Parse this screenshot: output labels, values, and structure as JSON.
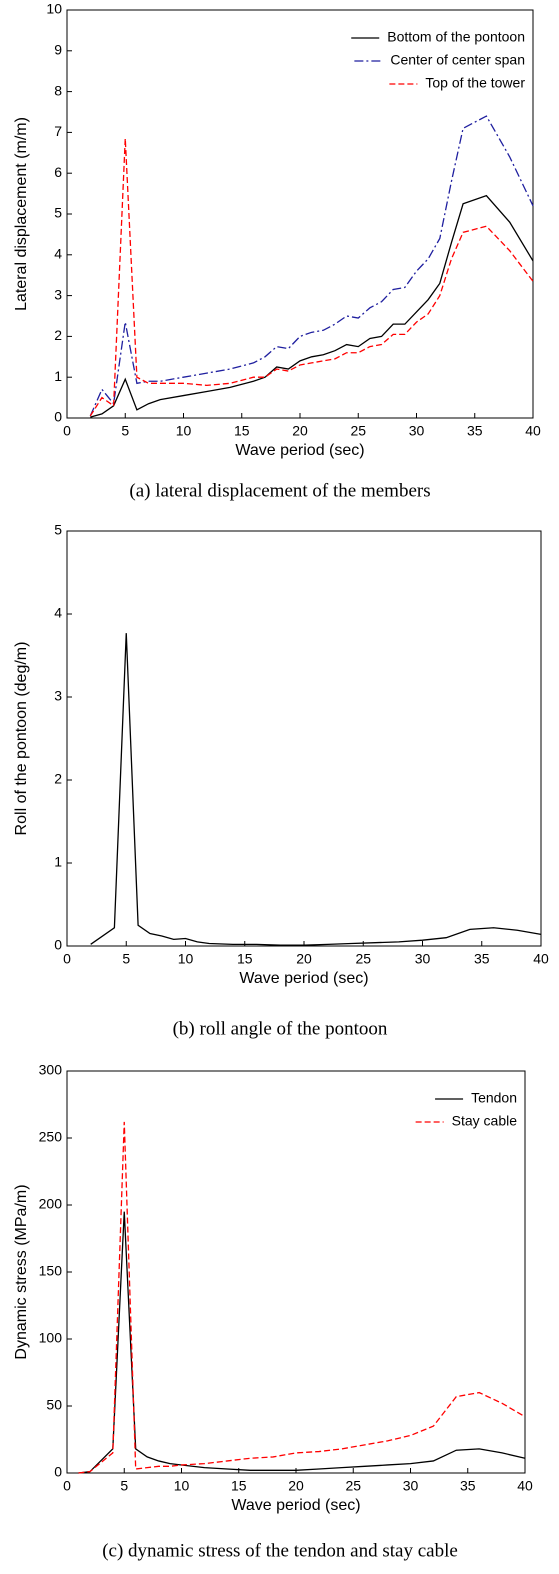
{
  "chart_data": [
    {
      "type": "line",
      "caption": "(a) lateral displacement of the members",
      "x_label": "Wave period (sec)",
      "y_label": "Lateral displacement (m/m)",
      "x": [
        2,
        3,
        4,
        5,
        6,
        7,
        8,
        10,
        12,
        14,
        16,
        17,
        18,
        19,
        20,
        21,
        22,
        23,
        24,
        25,
        26,
        27,
        28,
        29,
        30,
        31,
        32,
        33,
        34,
        36,
        38,
        40
      ],
      "series": [
        {
          "name": "Bottom of the pontoon",
          "color": "#000000",
          "dash": "solid",
          "values": [
            0.02,
            0.1,
            0.3,
            0.95,
            0.2,
            0.35,
            0.45,
            0.55,
            0.65,
            0.75,
            0.9,
            1.0,
            1.25,
            1.2,
            1.4,
            1.5,
            1.55,
            1.65,
            1.8,
            1.75,
            1.95,
            2.0,
            2.3,
            2.3,
            2.6,
            2.9,
            3.3,
            4.3,
            5.25,
            5.45,
            4.8,
            3.85
          ]
        },
        {
          "name": "Center of center span",
          "color": "#1f1f9f",
          "dash": "dashdot",
          "values": [
            0.05,
            0.7,
            0.35,
            2.35,
            0.85,
            0.9,
            0.9,
            1.0,
            1.1,
            1.2,
            1.35,
            1.5,
            1.75,
            1.7,
            2.0,
            2.1,
            2.15,
            2.3,
            2.5,
            2.45,
            2.7,
            2.85,
            3.15,
            3.2,
            3.6,
            3.9,
            4.4,
            5.8,
            7.1,
            7.4,
            6.4,
            5.2
          ]
        },
        {
          "name": "Top of the tower",
          "color": "#ff0000",
          "dash": "dashed",
          "values": [
            0.05,
            0.5,
            0.3,
            6.85,
            1.0,
            0.85,
            0.85,
            0.85,
            0.8,
            0.85,
            1.0,
            1.0,
            1.2,
            1.15,
            1.3,
            1.35,
            1.4,
            1.45,
            1.6,
            1.6,
            1.75,
            1.8,
            2.05,
            2.05,
            2.35,
            2.55,
            3.0,
            3.9,
            4.55,
            4.7,
            4.1,
            3.35
          ]
        }
      ],
      "xlim": [
        0,
        40
      ],
      "xticks": [
        0,
        5,
        10,
        15,
        20,
        25,
        30,
        35,
        40
      ],
      "ylim": [
        0,
        10
      ],
      "yticks": [
        0,
        1,
        2,
        3,
        4,
        5,
        6,
        7,
        8,
        9,
        10
      ],
      "legend": "upper right"
    },
    {
      "type": "line",
      "caption": "(b) roll angle of the pontoon",
      "x_label": "Wave period (sec)",
      "y_label": "Roll of the pontoon (deg/m)",
      "x": [
        2,
        4,
        5,
        6,
        7,
        8,
        9,
        10,
        11,
        12,
        14,
        16,
        18,
        20,
        22,
        24,
        26,
        28,
        30,
        32,
        34,
        36,
        38,
        40
      ],
      "series": [
        {
          "color": "#000000",
          "dash": "solid",
          "values": [
            0.02,
            0.22,
            3.77,
            0.25,
            0.15,
            0.12,
            0.08,
            0.09,
            0.05,
            0.03,
            0.02,
            0.02,
            0.01,
            0.01,
            0.02,
            0.03,
            0.04,
            0.05,
            0.07,
            0.1,
            0.2,
            0.22,
            0.19,
            0.14
          ]
        }
      ],
      "xlim": [
        0,
        40
      ],
      "xticks": [
        0,
        5,
        10,
        15,
        20,
        25,
        30,
        35,
        40
      ],
      "ylim": [
        0,
        5
      ],
      "yticks": [
        0,
        1,
        2,
        3,
        4,
        5
      ]
    },
    {
      "type": "line",
      "caption": "(c) dynamic stress of the tendon and stay cable",
      "x_label": "Wave period (sec)",
      "y_label": "Dynamic stress (MPa/m)",
      "x": [
        1,
        2,
        4,
        5,
        6,
        7,
        8,
        9,
        10,
        12,
        14,
        16,
        18,
        20,
        22,
        24,
        26,
        28,
        30,
        32,
        34,
        36,
        38,
        40
      ],
      "series": [
        {
          "name": "Tendon",
          "color": "#000000",
          "dash": "solid",
          "values": [
            0,
            1,
            18,
            195,
            18,
            12,
            9,
            7,
            6,
            4,
            3,
            2,
            2,
            2,
            3,
            4,
            5,
            6,
            7,
            9,
            17,
            18,
            15,
            11
          ]
        },
        {
          "name": "Stay cable",
          "color": "#ff0000",
          "dash": "dashed",
          "values": [
            0,
            1,
            15,
            262,
            3,
            4,
            5,
            5,
            6,
            7,
            9,
            11,
            12,
            15,
            16,
            18,
            21,
            24,
            28,
            35,
            57,
            60,
            52,
            42
          ]
        }
      ],
      "xlim": [
        0,
        40
      ],
      "xticks": [
        0,
        5,
        10,
        15,
        20,
        25,
        30,
        35,
        40
      ],
      "ylim": [
        0,
        300
      ],
      "yticks": [
        0,
        50,
        100,
        150,
        200,
        250,
        300
      ],
      "legend": "upper right"
    }
  ]
}
